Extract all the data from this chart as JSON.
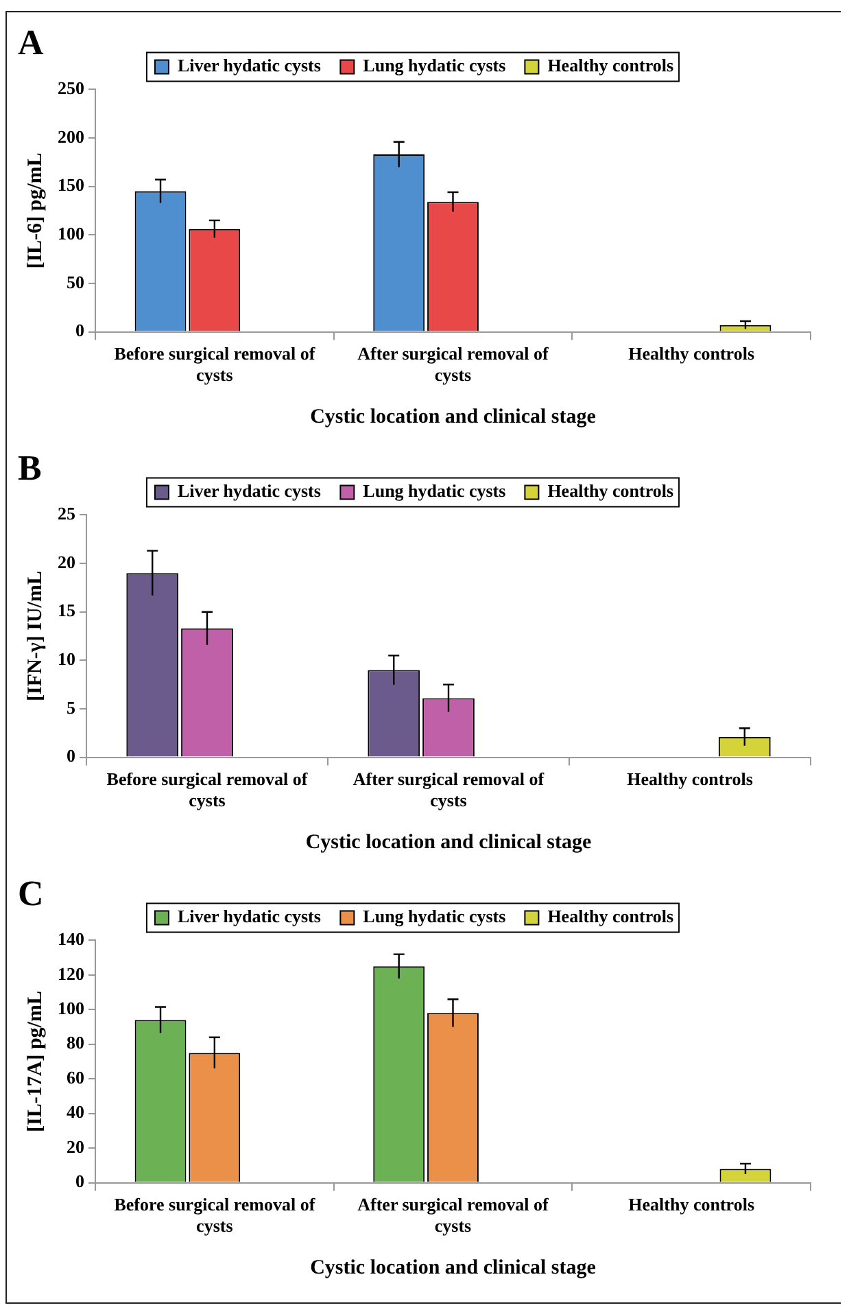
{
  "chart_data": [
    {
      "type": "bar",
      "title": "A",
      "xlabel": "Cystic location and clinical stage",
      "ylabel": "[IL-6] pg/mL",
      "categories": [
        "Before surgical removal of cysts",
        "After surgical removal of cysts",
        "Healthy controls"
      ],
      "ylim": [
        0,
        250
      ],
      "yticks": [
        0,
        50,
        100,
        150,
        200,
        250
      ],
      "grid": false,
      "legend": "top",
      "series": [
        {
          "name": "Liver hydatic cysts",
          "color": "#4f8fd0",
          "values": [
            145,
            183,
            null
          ],
          "errors": [
            12,
            13,
            null
          ]
        },
        {
          "name": "Lung hydatic cysts",
          "color": "#e84848",
          "values": [
            106,
            134,
            null
          ],
          "errors": [
            9,
            10,
            null
          ]
        },
        {
          "name": "Healthy controls",
          "color": "#d4d43a",
          "values": [
            null,
            null,
            7
          ],
          "errors": [
            null,
            null,
            4
          ]
        }
      ]
    },
    {
      "type": "bar",
      "title": "B",
      "xlabel": "Cystic location and clinical stage",
      "ylabel": "[IFN-γ] IU/mL",
      "categories": [
        "Before surgical removal of cysts",
        "After surgical removal of cysts",
        "Healthy controls"
      ],
      "ylim": [
        0,
        25
      ],
      "yticks": [
        0,
        5,
        10,
        15,
        20,
        25
      ],
      "grid": false,
      "legend": "top",
      "series": [
        {
          "name": "Liver hydatic cysts",
          "color": "#6b5b8c",
          "values": [
            19,
            9,
            null
          ],
          "errors": [
            2.3,
            1.5,
            null
          ]
        },
        {
          "name": "Lung hydatic cysts",
          "color": "#c060a8",
          "values": [
            13.3,
            6.1,
            null
          ],
          "errors": [
            1.7,
            1.4,
            null
          ]
        },
        {
          "name": "Healthy controls",
          "color": "#d4d43a",
          "values": [
            null,
            null,
            2.1
          ],
          "errors": [
            null,
            null,
            0.9
          ]
        }
      ]
    },
    {
      "type": "bar",
      "title": "C",
      "xlabel": "Cystic location and clinical stage",
      "ylabel": "[IL-17A] pg/mL",
      "categories": [
        "Before surgical removal of cysts",
        "After surgical removal of cysts",
        "Healthy controls"
      ],
      "ylim": [
        0,
        140
      ],
      "yticks": [
        0,
        20,
        40,
        60,
        80,
        100,
        120,
        140
      ],
      "grid": false,
      "legend": "top",
      "series": [
        {
          "name": "Liver hydatic cysts",
          "color": "#6cb255",
          "values": [
            94,
            125,
            null
          ],
          "errors": [
            7.5,
            7,
            null
          ]
        },
        {
          "name": "Lung hydatic cysts",
          "color": "#ea9048",
          "values": [
            75,
            98,
            null
          ],
          "errors": [
            9,
            8,
            null
          ]
        },
        {
          "name": "Healthy controls",
          "color": "#d4d43a",
          "values": [
            null,
            null,
            8
          ],
          "errors": [
            null,
            null,
            3
          ]
        }
      ]
    }
  ]
}
